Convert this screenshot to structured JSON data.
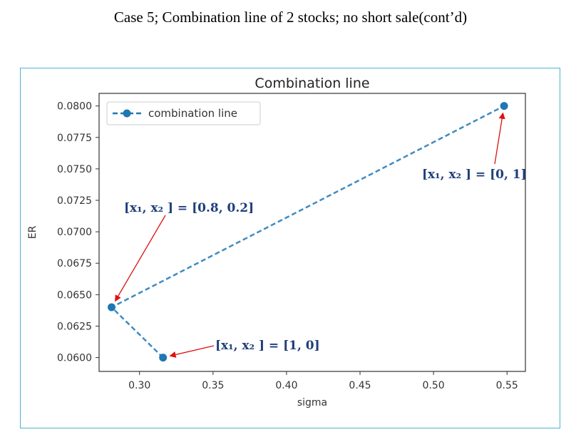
{
  "slide": {
    "title": "Case 5; Combination line of 2 stocks; no short sale(cont’d)"
  },
  "chart_data": {
    "type": "line",
    "title": "Combination line",
    "xlabel": "sigma",
    "ylabel": "ER",
    "xlim": [
      0.2725,
      0.5625
    ],
    "ylim": [
      0.0589,
      0.081
    ],
    "xticks": [
      0.3,
      0.35,
      0.4,
      0.45,
      0.5,
      0.55
    ],
    "xtick_labels": [
      "0.30",
      "0.35",
      "0.40",
      "0.45",
      "0.50",
      "0.55"
    ],
    "yticks": [
      0.06,
      0.0625,
      0.065,
      0.0675,
      0.07,
      0.0725,
      0.075,
      0.0775,
      0.08
    ],
    "ytick_labels": [
      "0.0600",
      "0.0625",
      "0.0650",
      "0.0675",
      "0.0700",
      "0.0725",
      "0.0750",
      "0.0775",
      "0.0800"
    ],
    "grid": false,
    "legend_position": "upper-left",
    "series": [
      {
        "name": "combination line",
        "color": "#1f77b4",
        "style": "dashed-with-circles",
        "x": [
          0.316,
          0.281,
          0.548
        ],
        "y": [
          0.06,
          0.064,
          0.08
        ]
      }
    ],
    "annotations": [
      {
        "text": "[x₁, x₂ ] = [1, 0]",
        "target": [
          0.316,
          0.06
        ]
      },
      {
        "text": "[x₁, x₂ ] = [0.8, 0.2]",
        "target": [
          0.281,
          0.064
        ]
      },
      {
        "text": "[x₁, x₂ ] = [0, 1]",
        "target": [
          0.548,
          0.08
        ]
      }
    ],
    "annotation_arrow_color": "#e01010"
  }
}
